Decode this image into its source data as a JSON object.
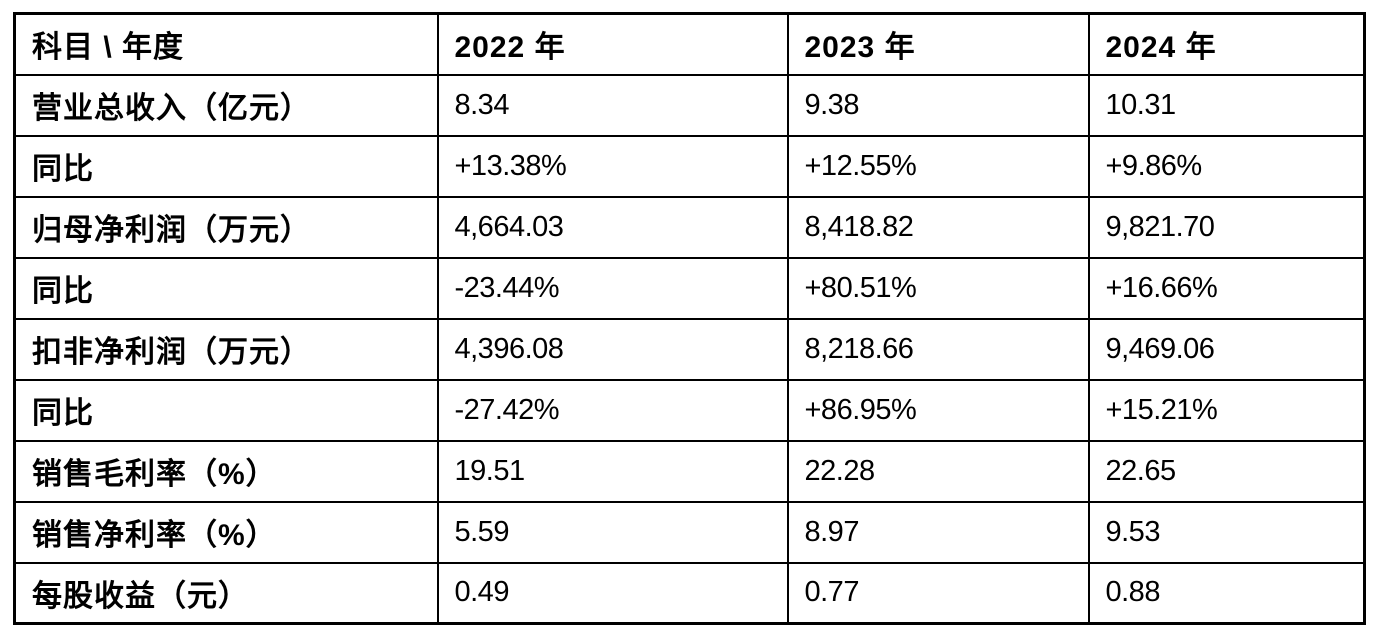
{
  "table": {
    "header": [
      "科目 \\ 年度",
      "2022 年",
      "2023 年",
      "2024 年"
    ],
    "rows": [
      {
        "label": "营业总收入（亿元）",
        "values": [
          "8.34",
          "9.38",
          "10.31"
        ]
      },
      {
        "label": "同比",
        "values": [
          "+13.38%",
          "+12.55%",
          "+9.86%"
        ]
      },
      {
        "label": "归母净利润（万元）",
        "values": [
          "4,664.03",
          "8,418.82",
          "9,821.70"
        ]
      },
      {
        "label": "同比",
        "values": [
          "-23.44%",
          "+80.51%",
          "+16.66%"
        ]
      },
      {
        "label": "扣非净利润（万元）",
        "values": [
          "4,396.08",
          "8,218.66",
          "9,469.06"
        ]
      },
      {
        "label": "同比",
        "values": [
          "-27.42%",
          "+86.95%",
          "+15.21%"
        ]
      },
      {
        "label": "销售毛利率（%）",
        "values": [
          "19.51",
          "22.28",
          "22.65"
        ]
      },
      {
        "label": "销售净利率（%）",
        "values": [
          "5.59",
          "8.97",
          "9.53"
        ]
      },
      {
        "label": "每股收益（元）",
        "values": [
          "0.49",
          "0.77",
          "0.88"
        ]
      }
    ]
  },
  "colors": {
    "border": "#000000",
    "background": "#ffffff",
    "text": "#000000"
  }
}
